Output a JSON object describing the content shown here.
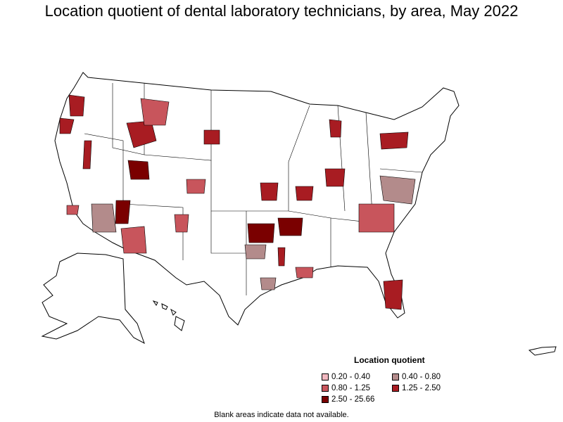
{
  "title": "Location quotient of dental laboratory technicians, by area, May 2022",
  "legend": {
    "title": "Location quotient",
    "items": [
      {
        "label": "0.20 - 0.40",
        "color": "#f0b7bf"
      },
      {
        "label": "0.40 - 0.80",
        "color": "#b38b8b"
      },
      {
        "label": "0.80 - 1.25",
        "color": "#c8555c"
      },
      {
        "label": "1.25 - 2.50",
        "color": "#a81c22"
      },
      {
        "label": "2.50 - 25.66",
        "color": "#7a0000"
      }
    ]
  },
  "footnote": "Blank areas indicate data not available.",
  "colors": {
    "background": "#ffffff",
    "blank": "#ffffff",
    "border": "#000000"
  }
}
